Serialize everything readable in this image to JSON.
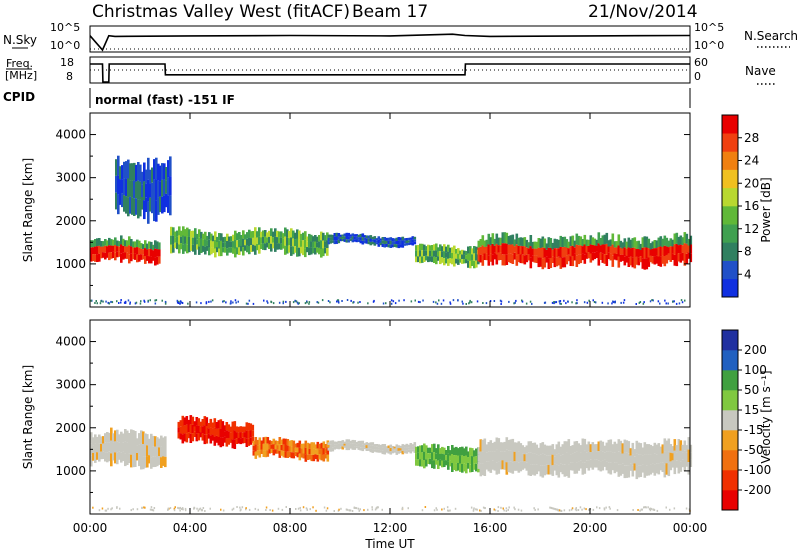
{
  "header": {
    "title": "Christmas Valley West (fitACF)",
    "beam": "Beam 17",
    "date": "21/Nov/2014"
  },
  "labels": {
    "nsky": "N.Sky",
    "nsearch": "N.Search",
    "freq_line1": "Freq.",
    "freq_line2": "[MHz]",
    "nave": "Nave",
    "cpid": "CPID",
    "cpid_text": "normal (fast) -151 IF",
    "noise_left_ticks": [
      "10^5",
      "10^0"
    ],
    "noise_right_ticks": [
      "10^5",
      "10^0"
    ],
    "freq_left_ticks": [
      "18",
      "8"
    ],
    "freq_right_ticks": [
      "60",
      "0"
    ]
  },
  "colors": {
    "power": [
      "#1030e0",
      "#2050c8",
      "#308060",
      "#40a050",
      "#60b838",
      "#b8d830",
      "#f0c020",
      "#f08010",
      "#f04010",
      "#e80000"
    ],
    "velocity_neg_to_pos": [
      "#e80000",
      "#f03000",
      "#f07010",
      "#f0a020",
      "#c8c8c0",
      "#80c840",
      "#40a040",
      "#2060c0",
      "#2030a0"
    ]
  },
  "chart_data": [
    {
      "type": "line",
      "name": "noise-panel",
      "series": [
        {
          "label": "N.Sky",
          "x": [
            "00:00",
            "00:30",
            "00:45",
            "01:00",
            "04:00",
            "08:00",
            "12:00",
            "14:30",
            "15:00",
            "16:00",
            "20:00",
            "24:00"
          ],
          "y": [
            0.65,
            0.0,
            0.65,
            0.62,
            0.64,
            0.66,
            0.64,
            0.72,
            0.66,
            0.62,
            0.64,
            0.66
          ]
        },
        {
          "label": "N.Search",
          "x": [
            "00:00",
            "24:00"
          ],
          "y": [
            0.05,
            0.05
          ]
        }
      ],
      "yticks_left": [
        "10^5",
        "10^0"
      ],
      "yticks_right": [
        "10^5",
        "10^0"
      ]
    },
    {
      "type": "line",
      "name": "frequency-panel",
      "series": [
        {
          "label": "Freq",
          "x": [
            "00:00",
            "00:30",
            "00:31",
            "00:45",
            "00:46",
            "03:00",
            "03:01",
            "15:00",
            "15:01",
            "24:00"
          ],
          "y": [
            15.5,
            15.5,
            8,
            8,
            15.5,
            15.5,
            11,
            11,
            15.5,
            15.5
          ]
        },
        {
          "label": "Nave",
          "x": [
            "00:00",
            "24:00"
          ],
          "y": [
            30,
            30
          ]
        }
      ],
      "yticks_left": [
        18,
        8
      ],
      "yticks_right": [
        60,
        0
      ]
    },
    {
      "type": "heatmap",
      "name": "power-panel",
      "x_label": "",
      "ylabel": "Slant Range [km]",
      "x_ticks": [
        "00:00",
        "04:00",
        "08:00",
        "12:00",
        "16:00",
        "20:00",
        "00:00"
      ],
      "y_ticks": [
        1000,
        2000,
        3000,
        4000
      ],
      "ylim": [
        0,
        4500
      ],
      "colorbar_label": "Power [dB]",
      "colorbar_ticks": [
        4,
        8,
        12,
        16,
        20,
        24,
        28
      ],
      "data_regions": [
        {
          "t_start": 0.0,
          "t_end": 2.8,
          "r_center": 1300,
          "r_width": 500,
          "level": "high"
        },
        {
          "t_start": 1.0,
          "t_end": 3.2,
          "r_center": 2800,
          "r_width": 1200,
          "level": "low"
        },
        {
          "t_start": 3.2,
          "t_end": 9.5,
          "r_center": 1500,
          "r_width": 500,
          "level": "medium"
        },
        {
          "t_start": 9.5,
          "t_end": 13.0,
          "r_center": 1550,
          "r_width": 200,
          "level": "low"
        },
        {
          "t_start": 13.0,
          "t_end": 15.5,
          "r_center": 1200,
          "r_width": 400,
          "level": "medium"
        },
        {
          "t_start": 15.5,
          "t_end": 24.0,
          "r_center": 1300,
          "r_width": 600,
          "level": "high"
        }
      ]
    },
    {
      "type": "heatmap",
      "name": "velocity-panel",
      "x_label": "Time UT",
      "ylabel": "Slant Range [km]",
      "x_ticks": [
        "00:00",
        "04:00",
        "08:00",
        "12:00",
        "16:00",
        "20:00",
        "00:00"
      ],
      "y_ticks": [
        1000,
        2000,
        3000,
        4000
      ],
      "ylim": [
        0,
        4500
      ],
      "colorbar_label": "Velocity [m s⁻¹]",
      "colorbar_ticks": [
        200,
        100,
        50,
        15,
        -15,
        -50,
        -100,
        -200
      ],
      "data_regions": [
        {
          "t_start": 0.0,
          "t_end": 3.0,
          "r_center": 1500,
          "r_width": 700,
          "velocity": 0
        },
        {
          "t_start": 3.5,
          "t_end": 6.5,
          "r_center": 1900,
          "r_width": 500,
          "velocity": -200
        },
        {
          "t_start": 6.5,
          "t_end": 9.5,
          "r_center": 1500,
          "r_width": 400,
          "velocity": -80
        },
        {
          "t_start": 9.5,
          "t_end": 13.0,
          "r_center": 1550,
          "r_width": 200,
          "velocity": 0
        },
        {
          "t_start": 13.0,
          "t_end": 15.5,
          "r_center": 1300,
          "r_width": 500,
          "velocity": 40
        },
        {
          "t_start": 15.5,
          "t_end": 24.0,
          "r_center": 1300,
          "r_width": 700,
          "velocity": 0
        }
      ]
    }
  ]
}
